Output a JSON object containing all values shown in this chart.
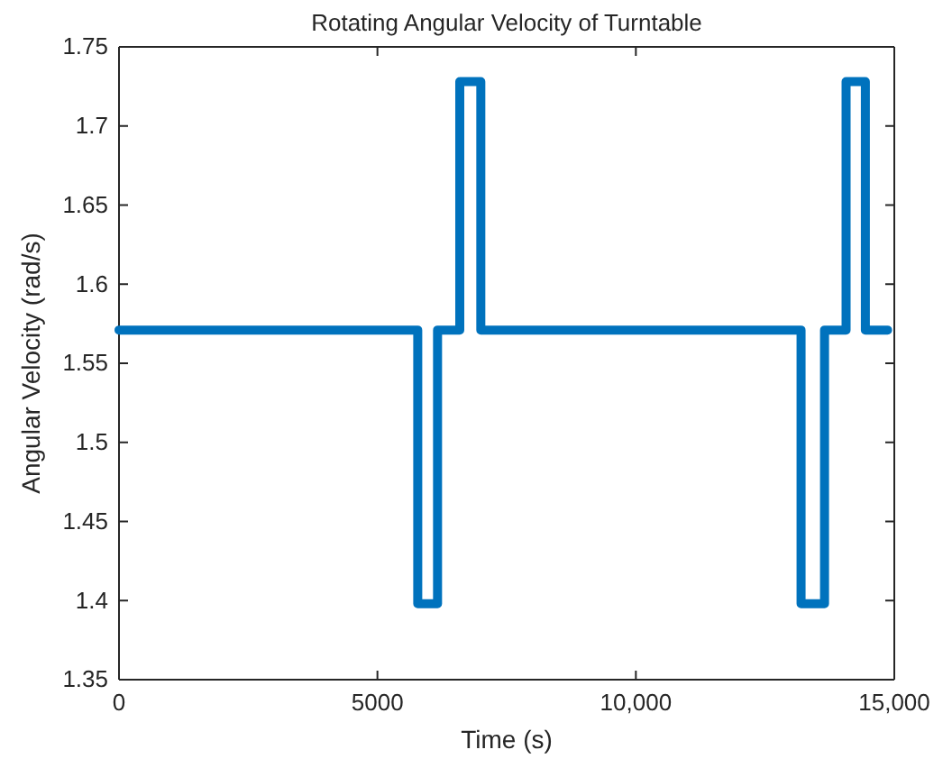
{
  "chart_data": {
    "type": "step",
    "title": "Rotating Angular Velocity of Turntable",
    "xlabel": "Time (s)",
    "ylabel": "Angular Velocity (rad/s)",
    "x": [
      0,
      5780,
      6163,
      6593,
      7000,
      13196,
      13650,
      14067,
      14440,
      14870
    ],
    "series": [
      {
        "color": "#0072bd",
        "values": [
          1.571,
          1.398,
          1.571,
          1.728,
          1.571,
          1.398,
          1.571,
          1.728,
          1.571,
          1.571
        ]
      }
    ],
    "xlim": [
      0,
      15000
    ],
    "xticks": [
      0,
      5000,
      {
        "value": 10000,
        "label": "10,000"
      },
      {
        "value": 15000,
        "label": "15,000"
      }
    ],
    "ylim": [
      1.35,
      1.75
    ],
    "yticks": [
      1.35,
      1.4,
      1.45,
      1.5,
      1.55,
      1.6,
      1.65,
      1.7,
      1.75
    ],
    "grid": false
  }
}
